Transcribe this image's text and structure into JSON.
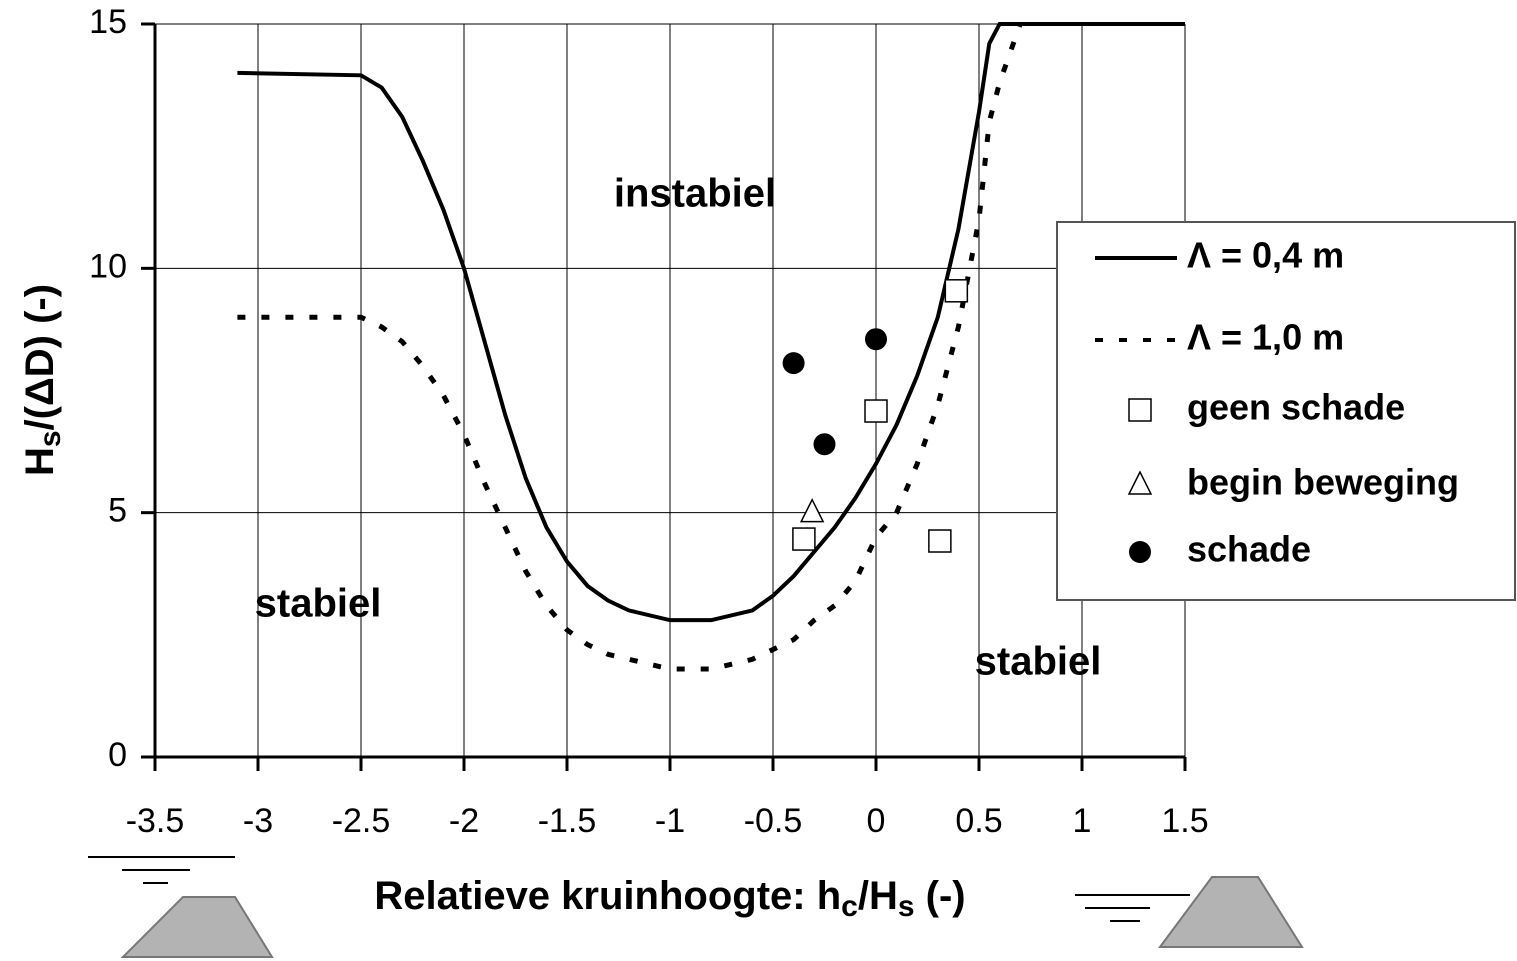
{
  "chart_data": {
    "type": "line",
    "xlabel": [
      "Relatieve kruinhoogte: h",
      "c",
      "/H",
      "s",
      "  (-)"
    ],
    "ylabel": [
      "H",
      "s",
      "/(ΔD)  (-)"
    ],
    "xlim": [
      -3.5,
      1.5
    ],
    "ylim": [
      0,
      15
    ],
    "xticks": [
      -3.5,
      -3,
      -2.5,
      -2,
      -1.5,
      -1,
      -0.5,
      0,
      0.5,
      1,
      1.5
    ],
    "yticks": [
      0,
      5,
      10,
      15
    ],
    "grid": true,
    "legend": "right",
    "annotations": [
      "instabiel",
      "stabiel",
      "stabiel"
    ],
    "series": [
      {
        "name": "Λ = 0,4 m",
        "type": "line",
        "style": "solid",
        "color": "#000000",
        "x": [
          -3.1,
          -2.5,
          -2.4,
          -2.3,
          -2.2,
          -2.1,
          -2.0,
          -1.9,
          -1.8,
          -1.7,
          -1.6,
          -1.5,
          -1.4,
          -1.3,
          -1.2,
          -1.0,
          -0.8,
          -0.6,
          -0.5,
          -0.4,
          -0.3,
          -0.2,
          -0.1,
          0,
          0.1,
          0.2,
          0.3,
          0.4,
          0.5,
          0.55,
          0.6,
          1.5
        ],
        "values": [
          14,
          13.95,
          13.7,
          13.1,
          12.2,
          11.2,
          10,
          8.5,
          7,
          5.7,
          4.7,
          4.0,
          3.5,
          3.2,
          3.0,
          2.8,
          2.8,
          3.0,
          3.3,
          3.7,
          4.2,
          4.7,
          5.3,
          6,
          6.8,
          7.8,
          9.0,
          10.8,
          13.2,
          14.6,
          15,
          15
        ]
      },
      {
        "name": "Λ = 1,0 m",
        "type": "line",
        "style": "dotted",
        "color": "#000000",
        "x": [
          -3.1,
          -2.5,
          -2.4,
          -2.3,
          -2.2,
          -2.1,
          -2.0,
          -1.9,
          -1.8,
          -1.7,
          -1.6,
          -1.5,
          -1.4,
          -1.3,
          -1.2,
          -1.0,
          -0.8,
          -0.6,
          -0.5,
          -0.4,
          -0.3,
          -0.2,
          -0.1,
          0,
          0.1,
          0.2,
          0.3,
          0.4,
          0.5,
          0.55,
          0.6,
          0.65,
          0.7
        ],
        "values": [
          9,
          9,
          8.8,
          8.5,
          8.0,
          7.4,
          6.6,
          5.6,
          4.7,
          3.8,
          3.1,
          2.6,
          2.3,
          2.1,
          2.0,
          1.8,
          1.8,
          2.0,
          2.2,
          2.4,
          2.8,
          3.1,
          3.6,
          4.5,
          5.0,
          6.0,
          7.2,
          8.8,
          11,
          13,
          13.8,
          14.4,
          15
        ]
      },
      {
        "name": "geen schade",
        "type": "scatter",
        "marker": "square",
        "color": "#000000",
        "x": [
          -0.35,
          0,
          0.31,
          0.39
        ],
        "values": [
          4.46,
          7.08,
          4.42,
          9.54
        ]
      },
      {
        "name": "begin beweging",
        "type": "scatter",
        "marker": "triangle",
        "color": "#000000",
        "x": [
          -0.31
        ],
        "values": [
          5.0
        ]
      },
      {
        "name": "schade",
        "type": "scatter",
        "marker": "circle",
        "color": "#000000",
        "x": [
          -0.4,
          -0.25,
          0
        ],
        "values": [
          8.06,
          6.4,
          8.55
        ]
      }
    ]
  }
}
